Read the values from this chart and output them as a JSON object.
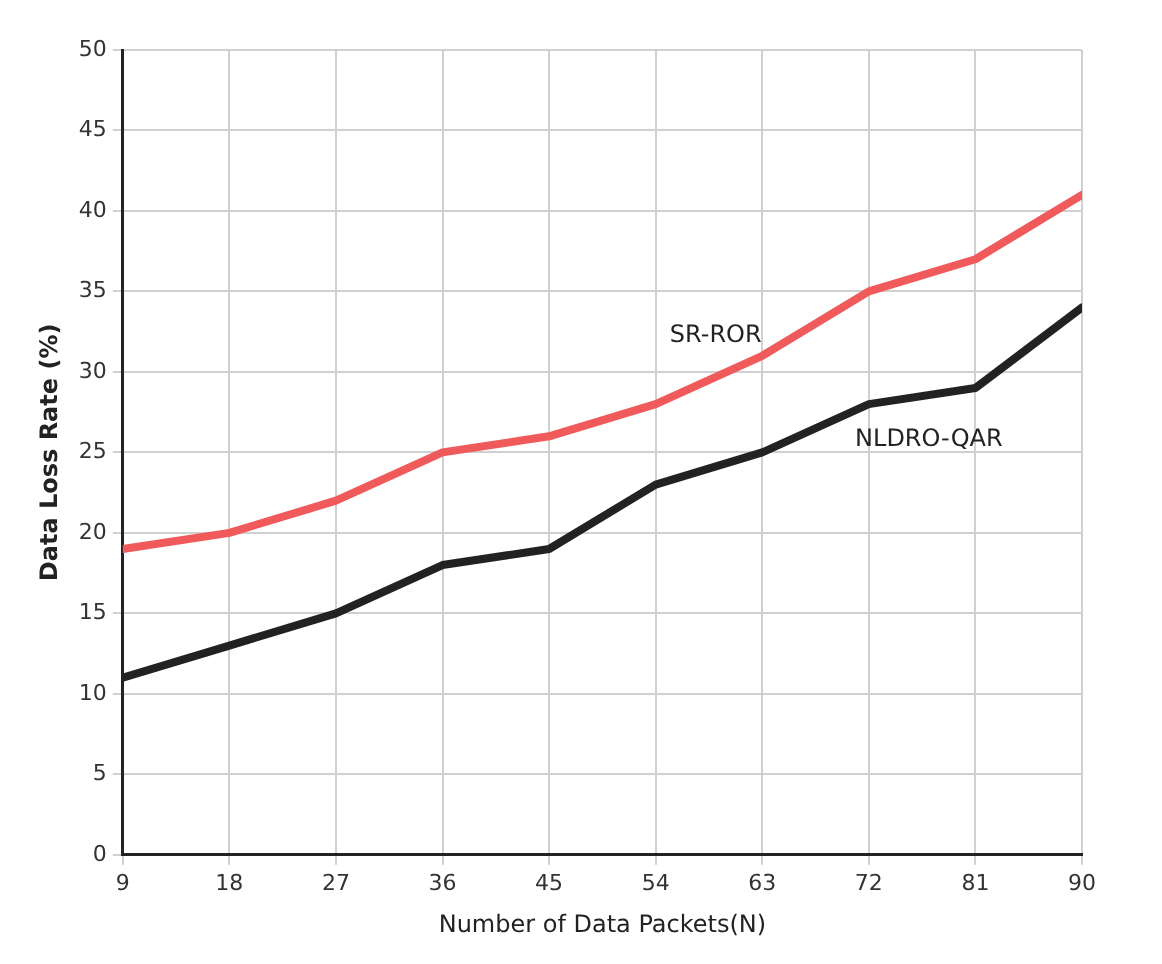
{
  "chart_data": {
    "type": "line",
    "xlabel": "Number of Data Packets(N)",
    "ylabel": "Data Loss Rate (%)",
    "x": [
      9,
      18,
      27,
      36,
      45,
      54,
      63,
      72,
      81,
      90
    ],
    "series": [
      {
        "name": "SR-ROR",
        "color": "#f05a5a",
        "values": [
          19,
          20,
          22,
          25,
          26,
          28,
          31,
          35,
          37,
          41
        ]
      },
      {
        "name": "NLDRO-QAR",
        "color": "#222222",
        "values": [
          11,
          13,
          15,
          18,
          19,
          23,
          25,
          28,
          29,
          34
        ]
      }
    ],
    "xlim": [
      9,
      90
    ],
    "xticks": [
      9,
      18,
      27,
      36,
      45,
      54,
      63,
      72,
      81,
      90
    ],
    "ylim": [
      0,
      50
    ],
    "yticks": [
      0,
      5,
      10,
      15,
      20,
      25,
      30,
      35,
      40,
      45,
      50
    ],
    "grid": true,
    "legend": false,
    "marker": "none",
    "line_style": "solid"
  }
}
